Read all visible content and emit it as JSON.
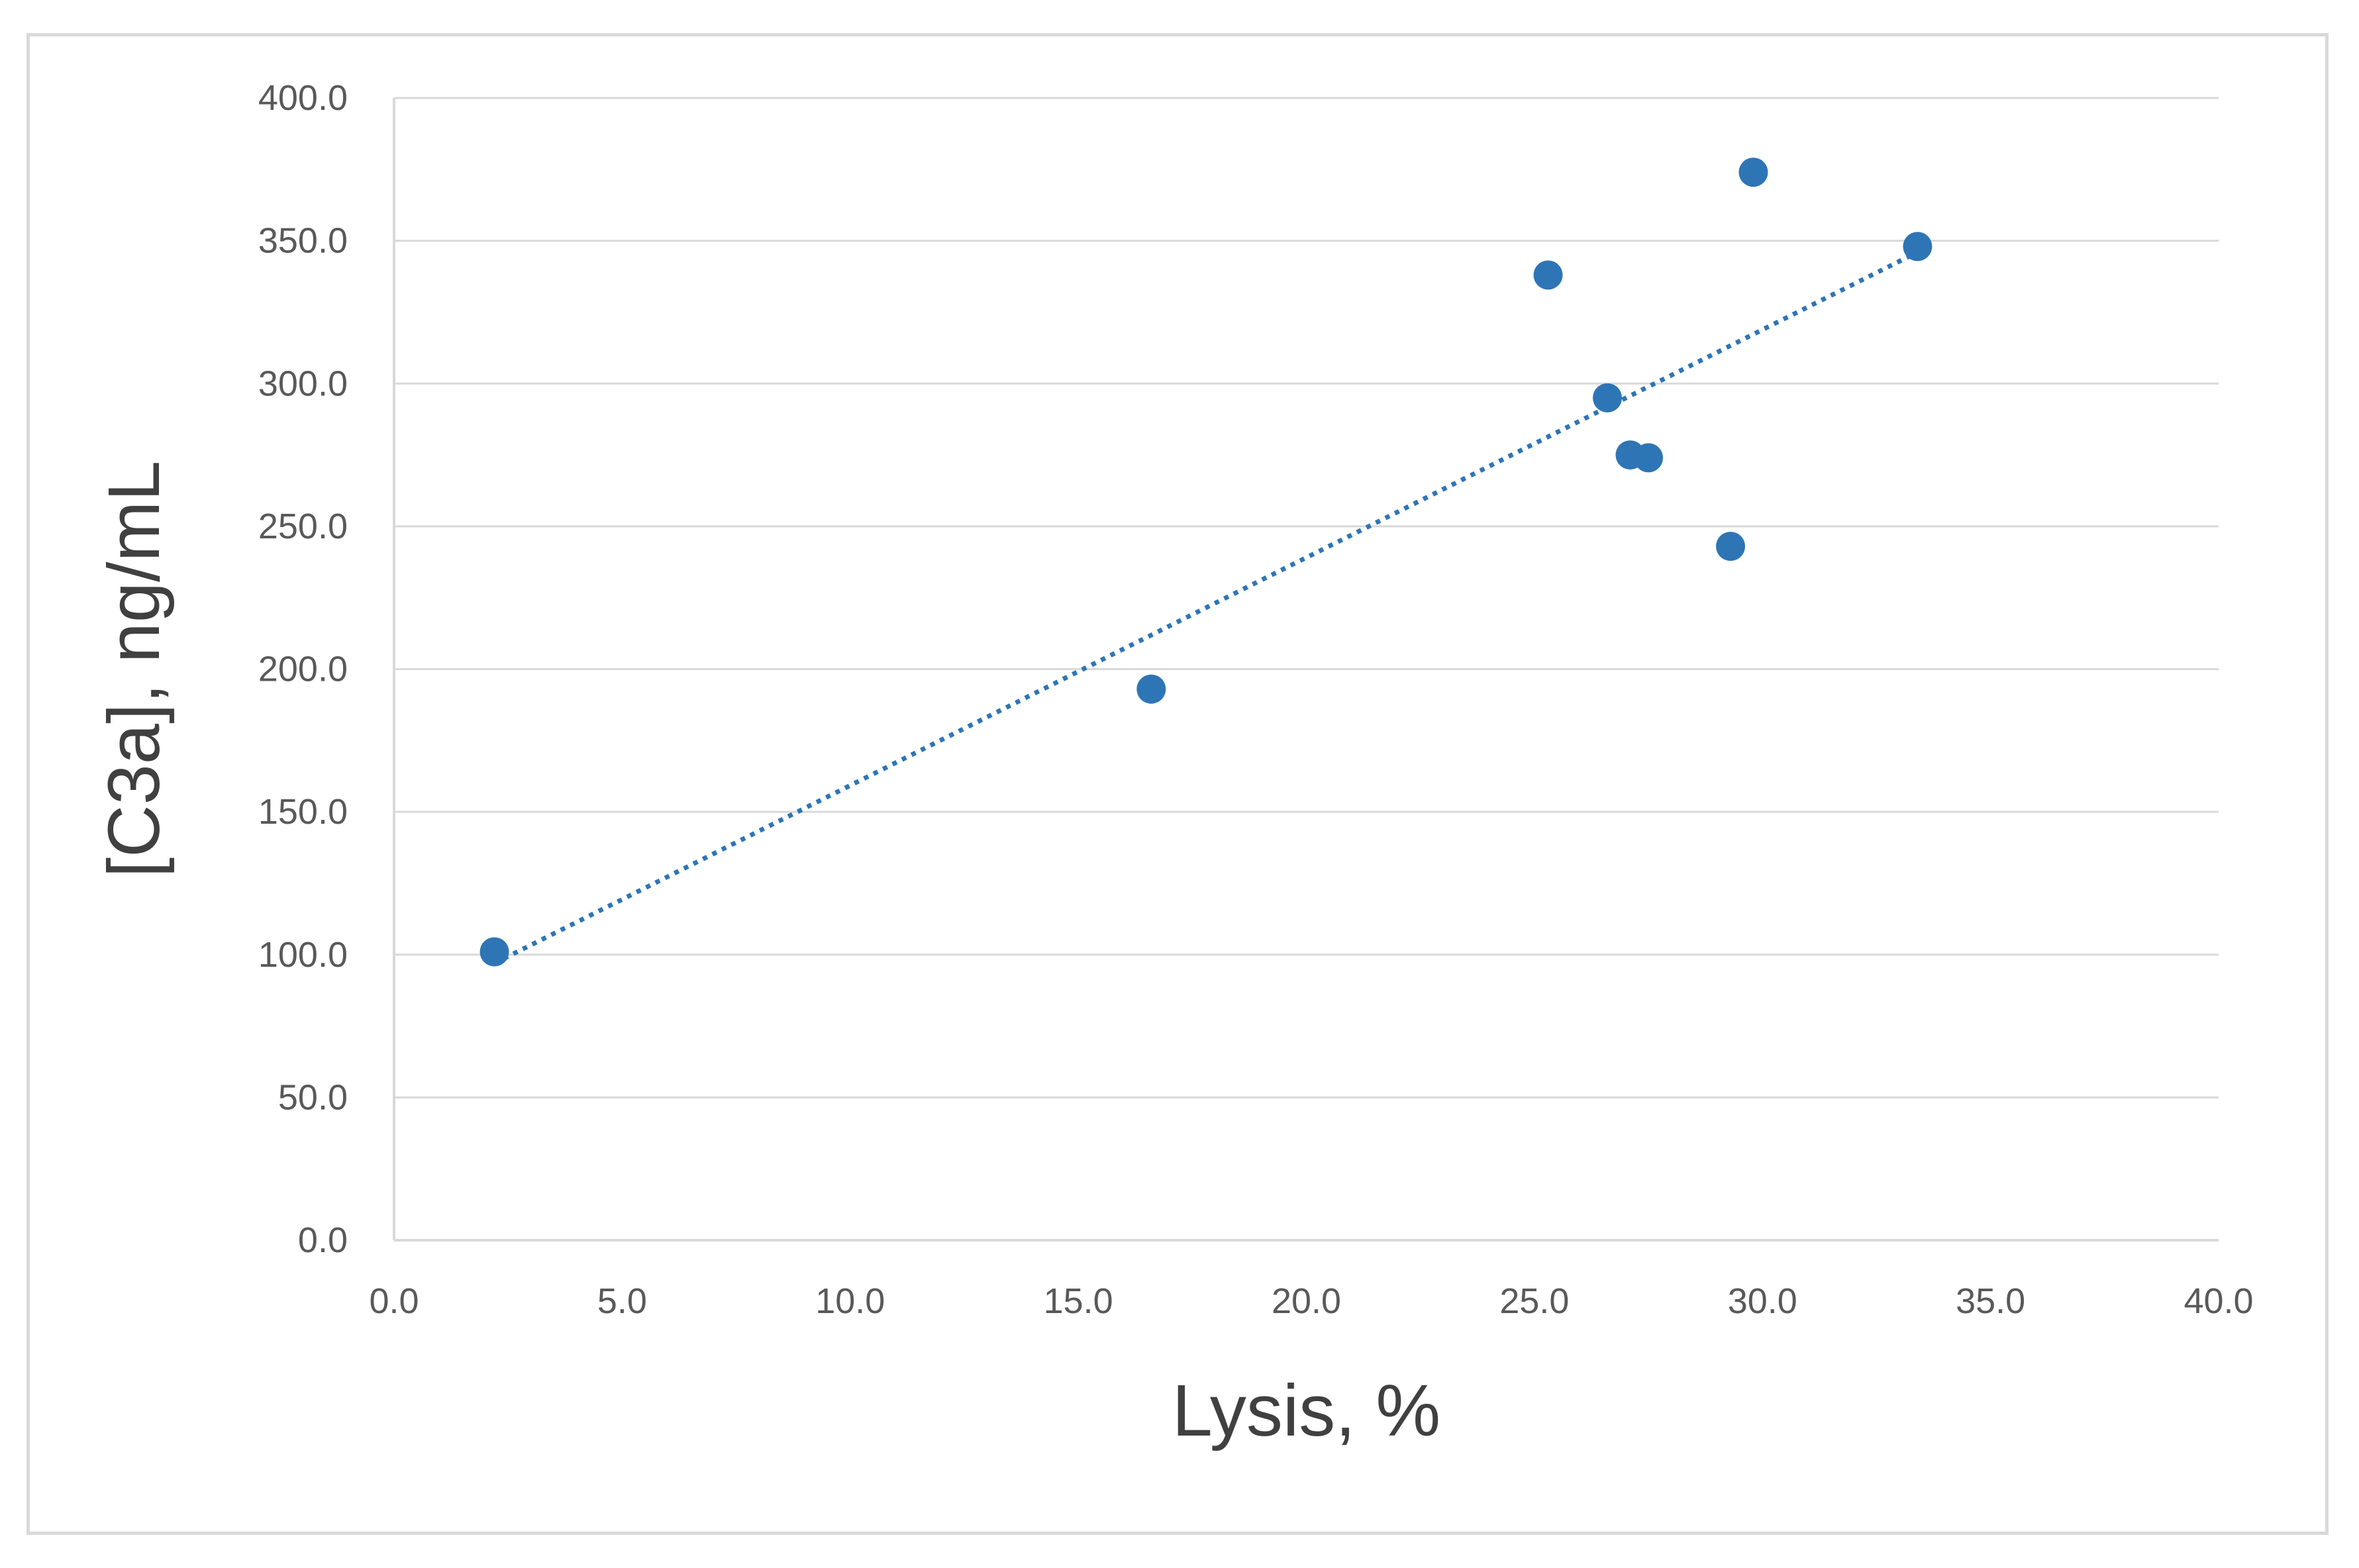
{
  "chart_data": {
    "type": "scatter",
    "xlabel": "Lysis, %",
    "ylabel": "[C3a], ng/mL",
    "xlim": [
      0,
      40
    ],
    "ylim": [
      0,
      400
    ],
    "x_ticks": [
      "0.0",
      "5.0",
      "10.0",
      "15.0",
      "20.0",
      "25.0",
      "30.0",
      "35.0",
      "40.0"
    ],
    "y_ticks": [
      "0.0",
      "50.0",
      "100.0",
      "150.0",
      "200.0",
      "250.0",
      "300.0",
      "350.0",
      "400.0"
    ],
    "grid": "horizontal",
    "points": [
      {
        "x": 2.2,
        "y": 101
      },
      {
        "x": 16.6,
        "y": 193
      },
      {
        "x": 25.3,
        "y": 338
      },
      {
        "x": 26.6,
        "y": 295
      },
      {
        "x": 27.1,
        "y": 275
      },
      {
        "x": 27.5,
        "y": 274
      },
      {
        "x": 29.3,
        "y": 243
      },
      {
        "x": 29.8,
        "y": 374
      },
      {
        "x": 33.4,
        "y": 348
      }
    ],
    "trendline": {
      "style": "dotted",
      "type": "linear",
      "from": {
        "x": 2.2,
        "y": 97
      },
      "to": {
        "x": 33.4,
        "y": 346
      }
    },
    "colors": {
      "marker": "#2e75b6",
      "trendline": "#2e75b6",
      "grid": "#d9d9d9"
    }
  }
}
